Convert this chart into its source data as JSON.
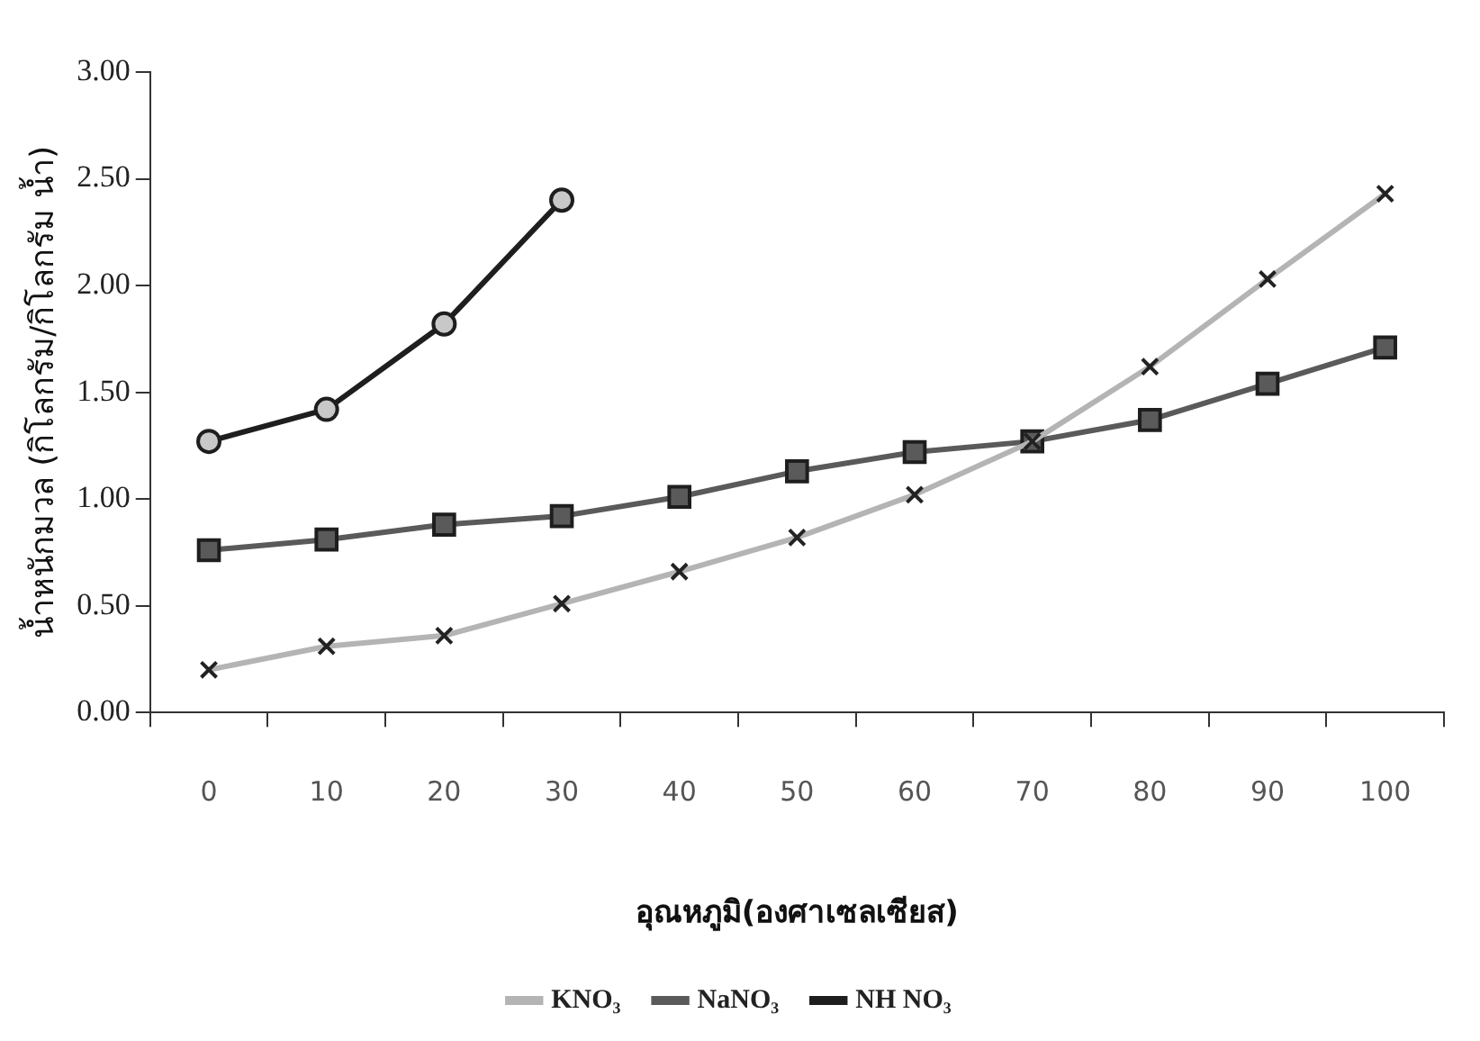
{
  "chart_data": {
    "type": "line",
    "xlabel": "อุณหภูมิ(องศาเซลเซียส)",
    "ylabel": "น้ำหนักมวล (กิโลกรัม/กิโลกรัม น้ำ)",
    "categories": [
      "0",
      "10",
      "20",
      "30",
      "40",
      "50",
      "60",
      "70",
      "80",
      "90",
      "100"
    ],
    "series": [
      {
        "name": "KNO₃",
        "color": "#b4b4b4",
        "marker": "cross",
        "values": [
          0.2,
          0.31,
          0.36,
          0.51,
          0.66,
          0.82,
          1.02,
          1.27,
          1.62,
          2.03,
          2.43
        ]
      },
      {
        "name": "NaNO₃",
        "color": "#5a5a5a",
        "marker": "square",
        "values": [
          0.76,
          0.81,
          0.88,
          0.92,
          1.01,
          1.13,
          1.22,
          1.27,
          1.37,
          1.54,
          1.71
        ]
      },
      {
        "name": "NH NO₃",
        "color": "#1e1e1e",
        "marker": "circle",
        "values": [
          1.27,
          1.42,
          1.82,
          2.4,
          null,
          null,
          null,
          null,
          null,
          null,
          null
        ]
      }
    ],
    "ylim": [
      0,
      3
    ],
    "yticks": [
      {
        "value": 0,
        "label": "0.00"
      },
      {
        "value": 0.5,
        "label": "0.50"
      },
      {
        "value": 1,
        "label": "1.00"
      },
      {
        "value": 1.5,
        "label": "1.50"
      },
      {
        "value": 2,
        "label": "2.00"
      },
      {
        "value": 2.5,
        "label": "2.50"
      },
      {
        "value": 3,
        "label": "3.00"
      }
    ],
    "grid": false,
    "legend": "bottom",
    "line_style": "solid"
  }
}
